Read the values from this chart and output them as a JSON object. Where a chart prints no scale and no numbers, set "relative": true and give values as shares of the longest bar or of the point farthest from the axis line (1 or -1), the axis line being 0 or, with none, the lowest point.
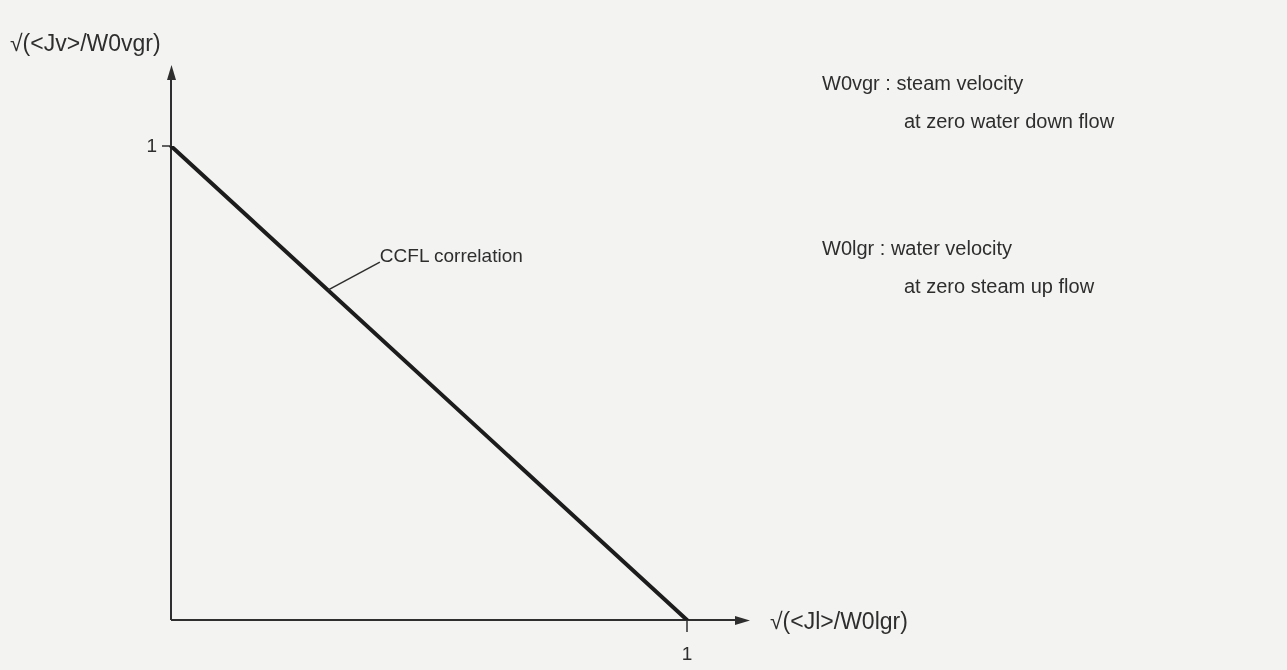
{
  "chart_data": {
    "type": "line",
    "relative": true,
    "categories": [
      null,
      null
    ],
    "series": [
      {
        "name": "CCFL correlation",
        "color": "#1c1c1c",
        "values": [
          1,
          0
        ]
      }
    ],
    "xlabel": "√(<Jl>/W0lgr)",
    "ylabel": "√(<Jv>/W0vgr)",
    "annotations": [
      "1",
      {
        "text": "1",
        "y": 0
      },
      "W0vgr : steam velocity\nat zero water down flow",
      "W0lgr : water velocity\nat zero steam up flow"
    ],
    "legend": false,
    "grid": false
  }
}
